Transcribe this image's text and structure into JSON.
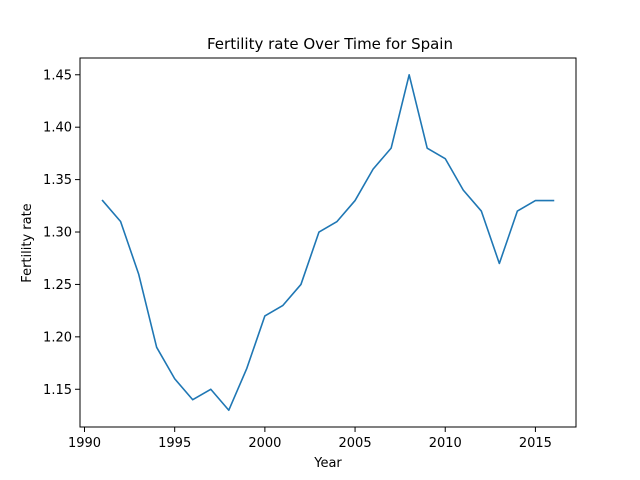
{
  "chart_data": {
    "type": "line",
    "title": "Fertility rate Over Time for Spain",
    "xlabel": "Year",
    "ylabel": "Fertility rate",
    "xlim": [
      1989.75,
      2017.25
    ],
    "ylim": [
      1.114,
      1.466
    ],
    "xticks": [
      1990,
      1995,
      2000,
      2005,
      2010,
      2015
    ],
    "yticks": [
      1.15,
      1.2,
      1.25,
      1.3,
      1.35,
      1.4,
      1.45
    ],
    "xtick_labels": [
      "1990",
      "1995",
      "2000",
      "2005",
      "2010",
      "2015"
    ],
    "ytick_labels": [
      "1.15",
      "1.20",
      "1.25",
      "1.30",
      "1.35",
      "1.40",
      "1.45"
    ],
    "grid": false,
    "series": [
      {
        "color": "#1f77b4",
        "x": [
          1991,
          1992,
          1993,
          1994,
          1995,
          1996,
          1997,
          1998,
          1999,
          2000,
          2001,
          2002,
          2003,
          2004,
          2005,
          2006,
          2007,
          2008,
          2009,
          2010,
          2011,
          2012,
          2013,
          2014,
          2015,
          2016
        ],
        "y": [
          1.33,
          1.31,
          1.26,
          1.19,
          1.16,
          1.14,
          1.15,
          1.13,
          1.17,
          1.22,
          1.23,
          1.25,
          1.3,
          1.31,
          1.33,
          1.36,
          1.38,
          1.45,
          1.38,
          1.37,
          1.34,
          1.32,
          1.27,
          1.32,
          1.33,
          1.33
        ]
      }
    ]
  }
}
